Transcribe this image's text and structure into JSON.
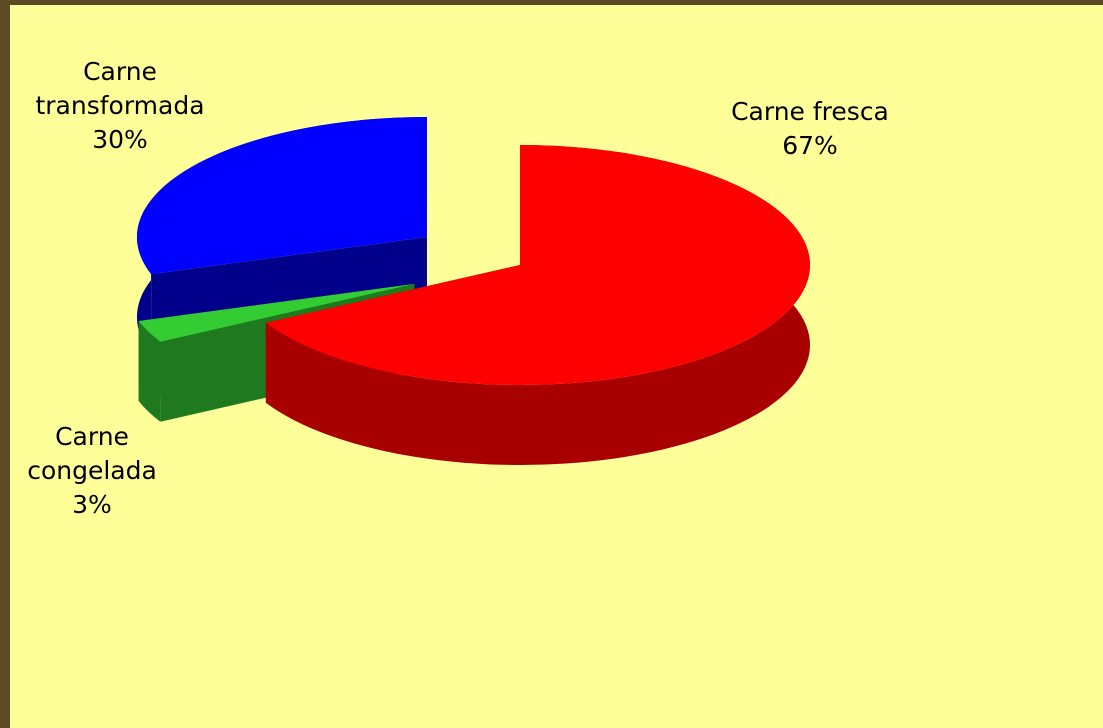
{
  "chart_data": {
    "type": "pie",
    "categories": [
      "Carne fresca",
      "Carne congelada",
      "Carne transformada"
    ],
    "values": [
      67,
      3,
      30
    ],
    "value_labels": [
      "67%",
      "3%",
      "30%"
    ],
    "colors": [
      "#ff0000",
      "#33cc33",
      "#0000ff"
    ]
  }
}
